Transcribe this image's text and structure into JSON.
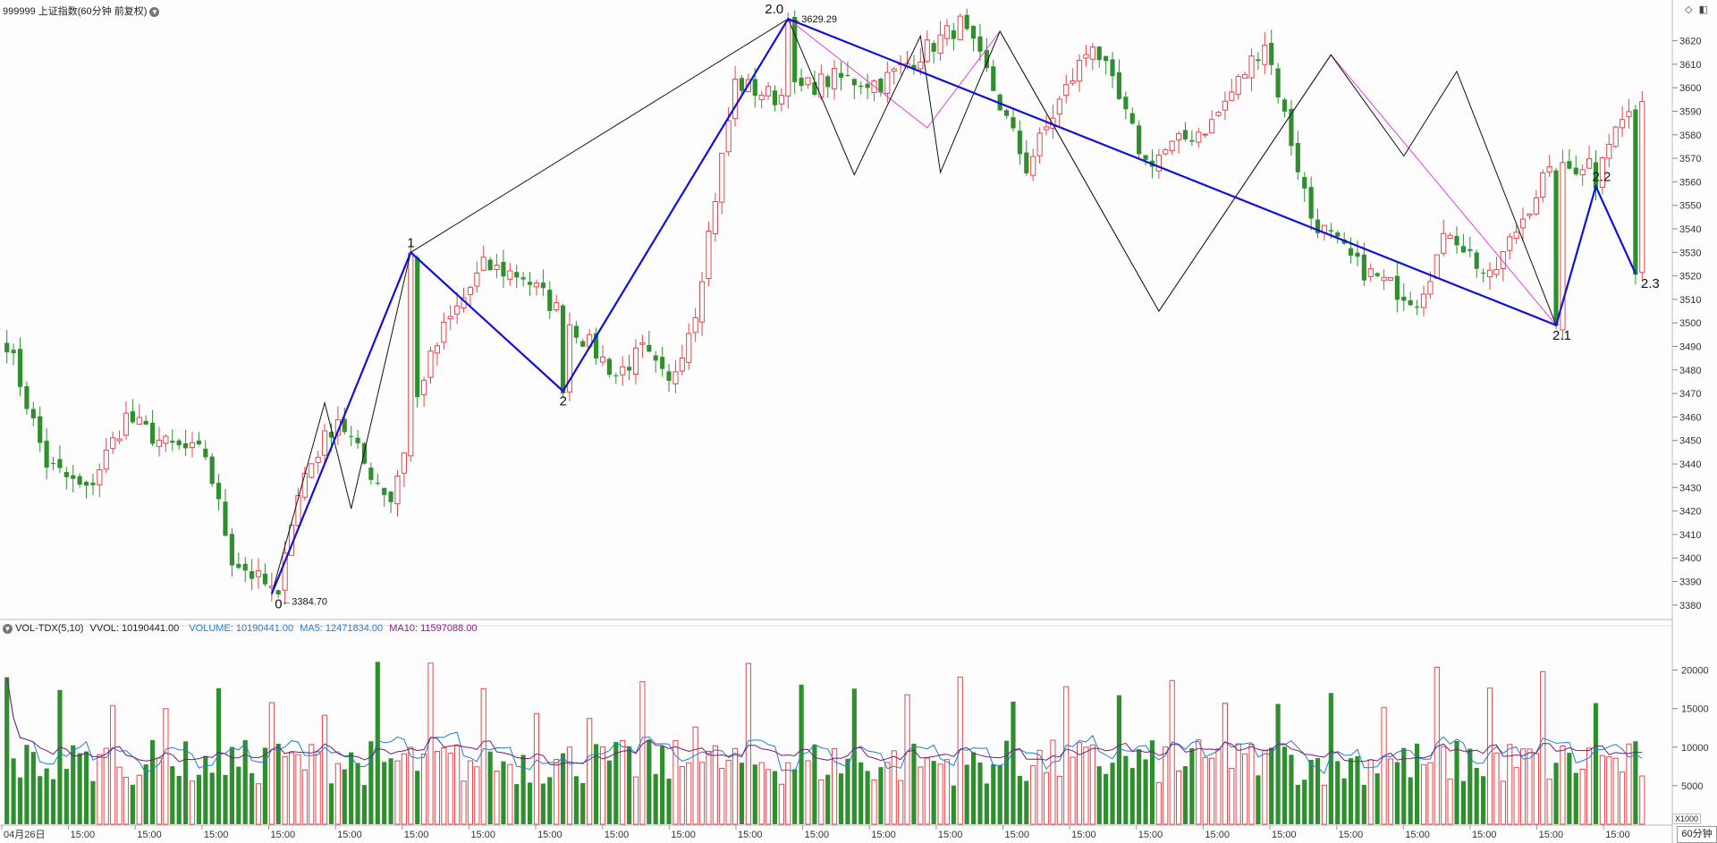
{
  "header": {
    "title": "999999 上证指数(60分钟 前复权)",
    "vol_title": "VOL-TDX(5,10)",
    "vvol": "VVOL: 10190441.00",
    "volume": "VOLUME: 10190441.00",
    "ma5": "MA5: 12471834.00",
    "ma10": "MA10: 11597088.00",
    "period_tag": "60分钟",
    "vol_unit": "X1000"
  },
  "colors": {
    "up": "#e8454a",
    "down": "#2f8f2f",
    "wave_main": "#1010dd",
    "wave_minor": "#111111",
    "wave_pink": "#e040e0",
    "ma5": "#1e7fd0",
    "ma10": "#7a1a7a"
  },
  "chart_data": [
    {
      "type": "candlestick",
      "title": "999999 上证指数(60分钟 前复权)",
      "ylim": [
        3375,
        3632
      ],
      "y_ticks": [
        3380,
        3390,
        3400,
        3410,
        3420,
        3430,
        3440,
        3450,
        3460,
        3470,
        3480,
        3490,
        3500,
        3510,
        3520,
        3530,
        3540,
        3550,
        3560,
        3570,
        3580,
        3590,
        3600,
        3610,
        3620
      ],
      "x_labels": [
        "04月26日",
        "15:00",
        "15:00",
        "15:00",
        "15:00",
        "15:00",
        "15:00",
        "15:00",
        "15:00",
        "15:00",
        "15:00",
        "15:00",
        "15:00",
        "15:00",
        "15:00",
        "15:00",
        "15:00",
        "15:00",
        "15:00",
        "15:00",
        "15:00",
        "15:00",
        "15:00",
        "15:00",
        "15:00"
      ],
      "bar_count": 248,
      "control_points": [
        [
          0,
          3492
        ],
        [
          6,
          3440
        ],
        [
          12,
          3428
        ],
        [
          18,
          3460
        ],
        [
          24,
          3448
        ],
        [
          30,
          3444
        ],
        [
          34,
          3400
        ],
        [
          40,
          3386
        ],
        [
          45,
          3436
        ],
        [
          50,
          3460
        ],
        [
          54,
          3440
        ],
        [
          58,
          3425
        ],
        [
          63,
          3478
        ],
        [
          66,
          3497
        ],
        [
          72,
          3524
        ],
        [
          78,
          3520
        ],
        [
          85,
          3500
        ],
        [
          92,
          3478
        ],
        [
          96,
          3488
        ],
        [
          100,
          3473
        ],
        [
          104,
          3506
        ],
        [
          110,
          3602
        ],
        [
          116,
          3596
        ],
        [
          125,
          3604
        ],
        [
          132,
          3602
        ],
        [
          144,
          3627
        ],
        [
          148,
          3606
        ],
        [
          154,
          3566
        ],
        [
          159,
          3594
        ],
        [
          164,
          3620
        ],
        [
          172,
          3568
        ],
        [
          182,
          3585
        ],
        [
          190,
          3620
        ],
        [
          197,
          3545
        ],
        [
          204,
          3524
        ],
        [
          210,
          3514
        ],
        [
          213,
          3510
        ],
        [
          218,
          3540
        ],
        [
          224,
          3518
        ],
        [
          232,
          3561
        ],
        [
          240,
          3570
        ],
        [
          248,
          3602
        ],
        [
          256,
          3585
        ],
        [
          262,
          3606
        ],
        [
          266,
          3575
        ],
        [
          272,
          3538
        ],
        [
          278,
          3528
        ],
        [
          284,
          3512
        ],
        [
          288,
          3504
        ],
        [
          293,
          3540
        ],
        [
          296,
          3560
        ],
        [
          299,
          3538
        ],
        [
          304,
          3526
        ]
      ],
      "annotations": [
        {
          "label": "0",
          "price": "3384.70",
          "bar": 41,
          "y": 3384.7
        },
        {
          "label": "1",
          "bar": 61,
          "y": 3530
        },
        {
          "label": "2",
          "bar": 84,
          "y": 3471
        },
        {
          "label": "2.0",
          "price": "3629.29",
          "bar": 118,
          "y": 3629.3
        },
        {
          "label": "2.1",
          "bar": 234,
          "y": 3499
        },
        {
          "label": "2.2",
          "bar": 240,
          "y": 3558
        },
        {
          "label": "2.3",
          "bar": 246,
          "y": 3521
        }
      ],
      "waves": {
        "main": [
          [
            40,
            3384.7
          ],
          [
            61,
            3530
          ],
          [
            84,
            3471
          ],
          [
            118,
            3629.3
          ],
          [
            234,
            3499
          ],
          [
            240,
            3558
          ],
          [
            246,
            3521
          ]
        ],
        "minor": [
          [
            40,
            3384.7
          ],
          [
            48,
            3466
          ],
          [
            52,
            3421
          ],
          [
            61,
            3530
          ],
          [
            118,
            3629.3
          ],
          [
            128,
            3563
          ],
          [
            138,
            3622
          ],
          [
            141,
            3564
          ],
          [
            150,
            3624
          ],
          [
            174,
            3505
          ],
          [
            200,
            3614
          ],
          [
            211,
            3571
          ],
          [
            219,
            3607
          ],
          [
            234,
            3499
          ]
        ],
        "pink": [
          [
            118,
            3629.3
          ],
          [
            139,
            3583
          ],
          [
            150,
            3624
          ],
          [
            174,
            3505
          ],
          [
            200,
            3614
          ],
          [
            234,
            3499
          ]
        ]
      }
    },
    {
      "type": "bar",
      "title": "VOL-TDX(5,10)",
      "ylim": [
        0,
        24000
      ],
      "y_ticks": [
        5000,
        10000,
        15000,
        20000
      ],
      "unit": "X1000",
      "series": [
        {
          "name": "VOLUME",
          "last": "10190441.00"
        },
        {
          "name": "MA5",
          "last": "12471834.00"
        },
        {
          "name": "MA10",
          "last": "11597088.00"
        }
      ]
    }
  ]
}
